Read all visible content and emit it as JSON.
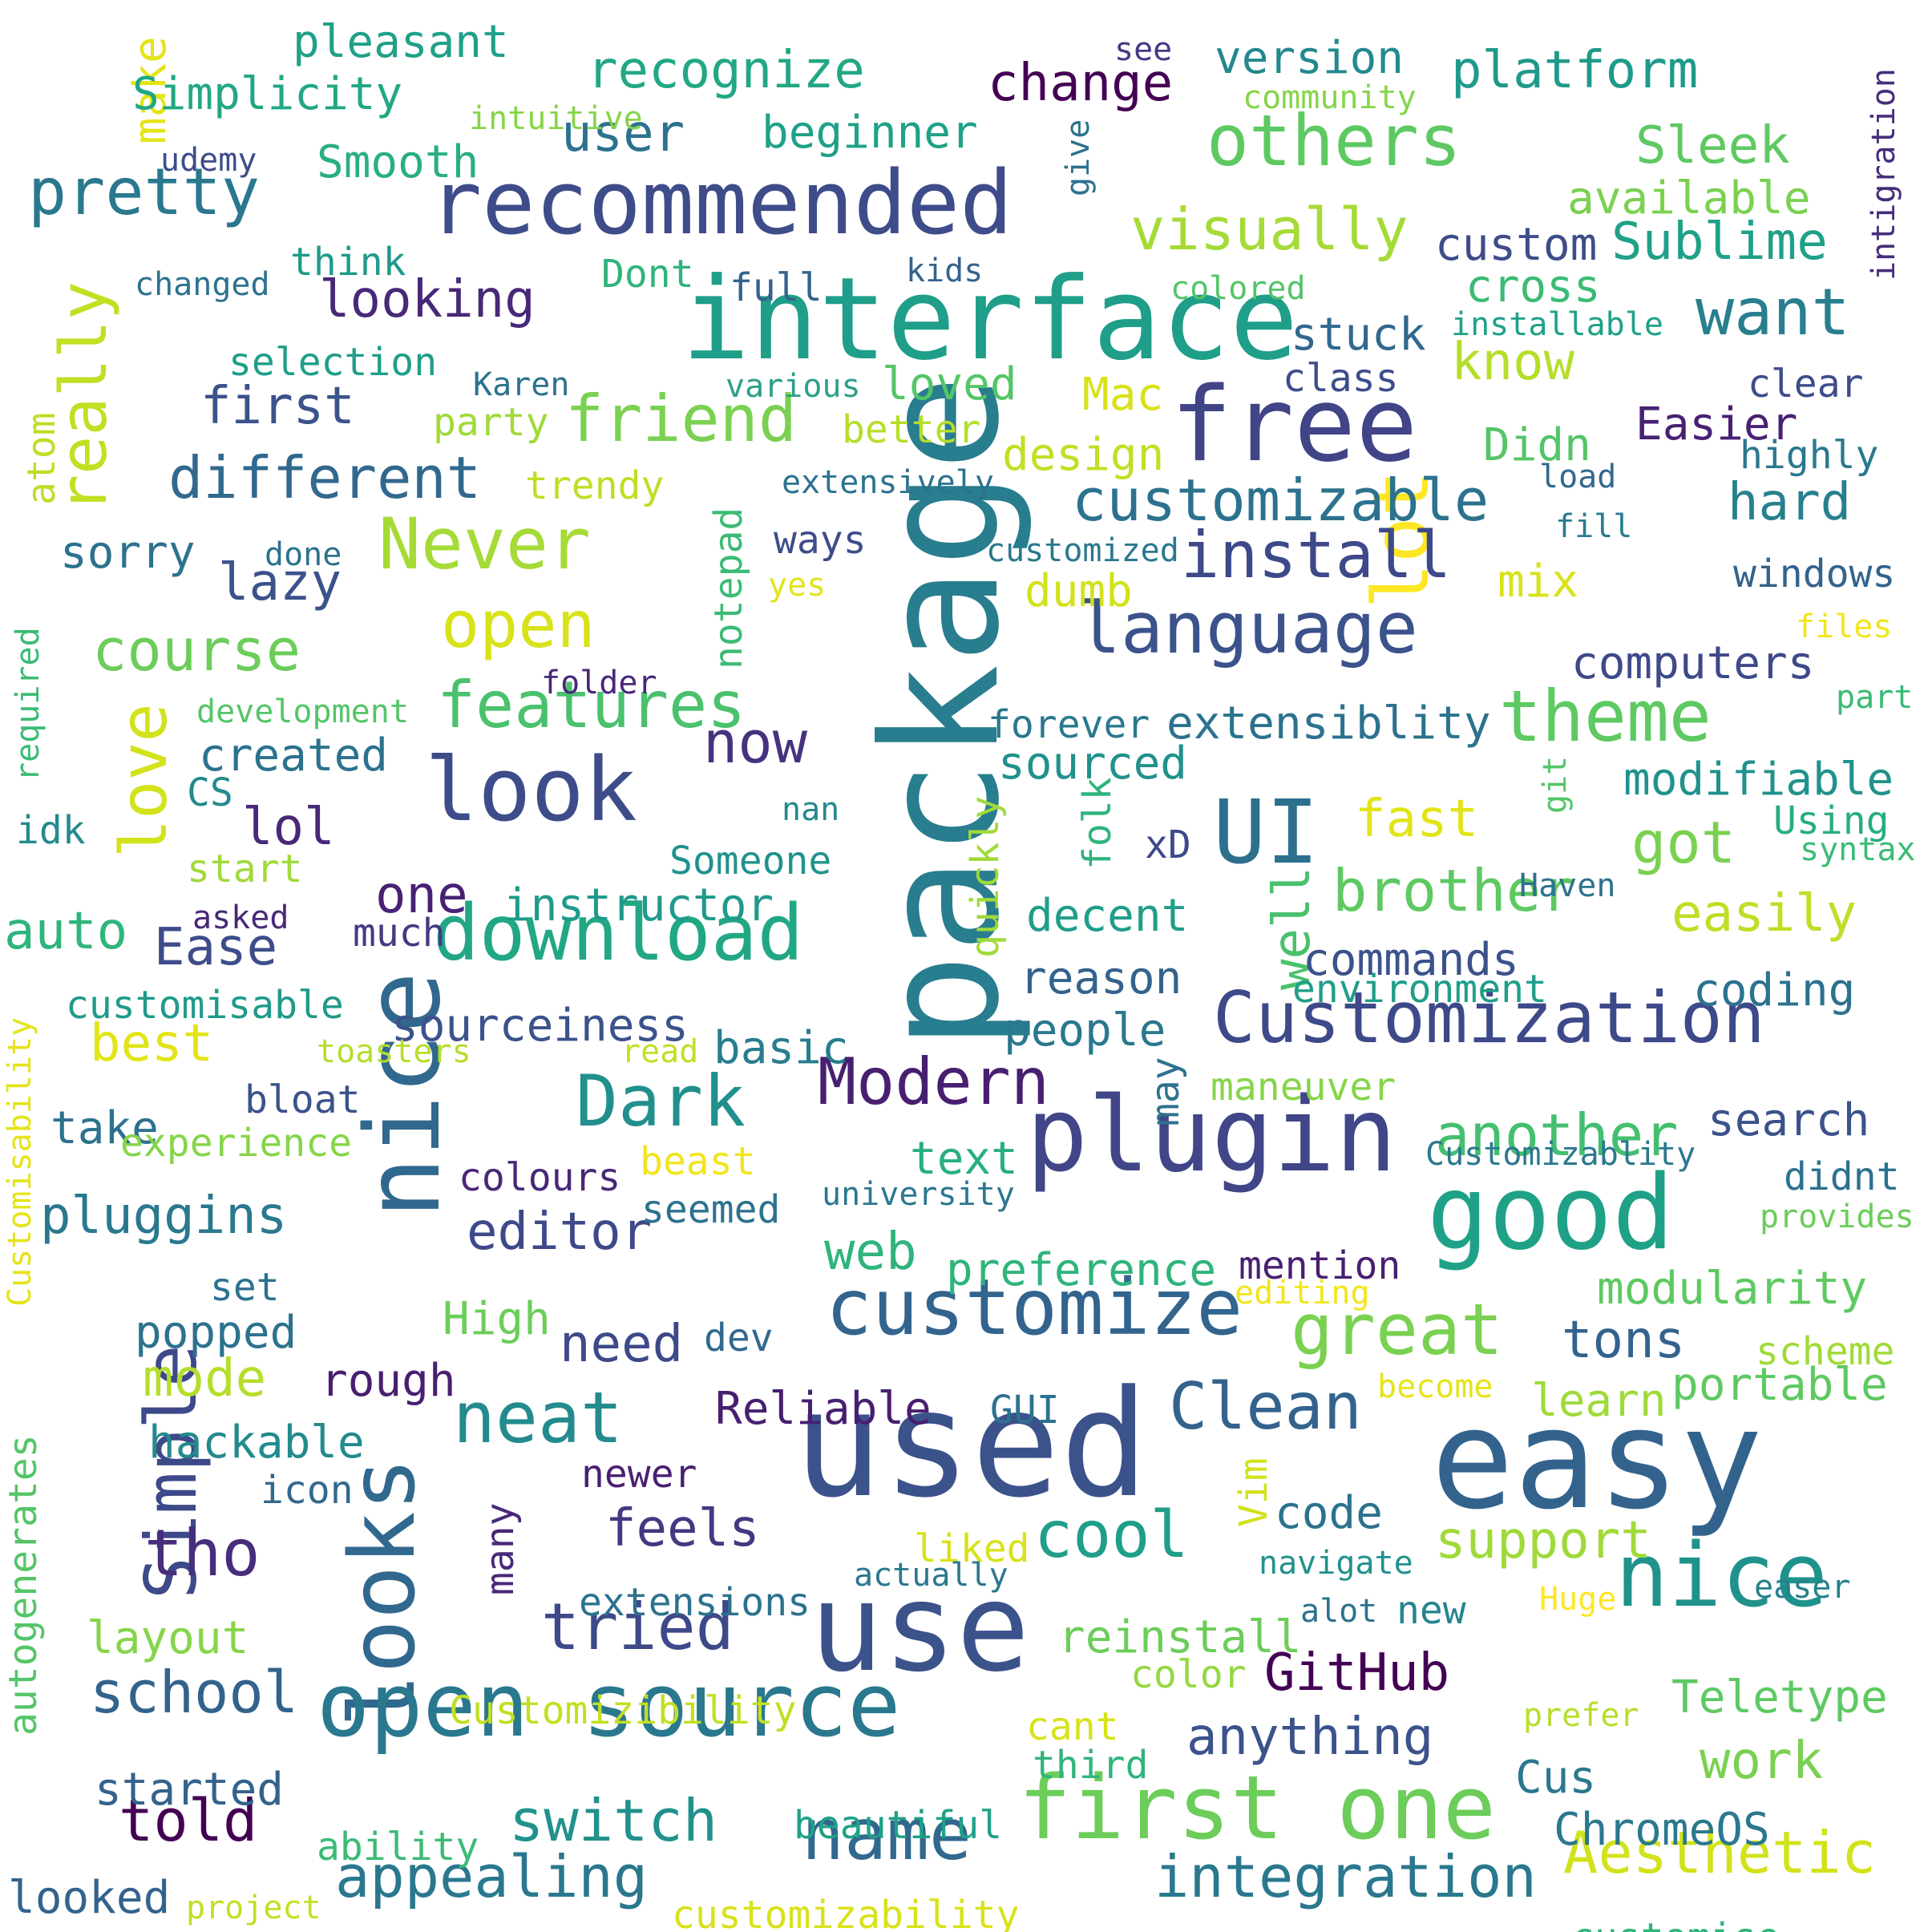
{
  "word_cloud": {
    "background": "#ffffff",
    "colormap": "viridis",
    "words": [
      {
        "text": "package",
        "color": "#287d8e"
      },
      {
        "text": "used",
        "color": "#3b528b"
      },
      {
        "text": "easy",
        "color": "#33638d"
      },
      {
        "text": "interface",
        "color": "#1f9e89"
      },
      {
        "text": "use",
        "color": "#3b528b"
      },
      {
        "text": "looks",
        "color": "#31688e"
      },
      {
        "text": "nice",
        "color": "#31688e"
      },
      {
        "text": "plugin",
        "color": "#404688"
      },
      {
        "text": "good",
        "color": "#1fa188"
      },
      {
        "text": "free",
        "color": "#414487"
      },
      {
        "text": "recommended",
        "color": "#3e4c8a"
      },
      {
        "text": "open source",
        "color": "#2a788e"
      },
      {
        "text": "first one",
        "color": "#6ccd5a"
      },
      {
        "text": "nice",
        "color": "#20928c"
      },
      {
        "text": "UI",
        "color": "#2d708e"
      },
      {
        "text": "look",
        "color": "#3e4c8a"
      },
      {
        "text": "customize",
        "color": "#32648e"
      },
      {
        "text": "download",
        "color": "#22a785"
      },
      {
        "text": "lot",
        "color": "#fde725"
      },
      {
        "text": "Simple",
        "color": "#3e4989"
      },
      {
        "text": "others",
        "color": "#5ec962"
      },
      {
        "text": "Never",
        "color": "#a5db36"
      },
      {
        "text": "language",
        "color": "#3b528b"
      },
      {
        "text": "theme",
        "color": "#5ec962"
      },
      {
        "text": "Customization",
        "color": "#3e4989"
      },
      {
        "text": "great",
        "color": "#7ad151"
      },
      {
        "text": "name",
        "color": "#31688e"
      },
      {
        "text": "neat",
        "color": "#238a8d"
      },
      {
        "text": "Dark",
        "color": "#21908d"
      },
      {
        "text": "Modern",
        "color": "#481f70"
      },
      {
        "text": "tried",
        "color": "#3e4989"
      },
      {
        "text": "cool",
        "color": "#1f9e89"
      },
      {
        "text": "tho",
        "color": "#472d7b"
      },
      {
        "text": "Clean",
        "color": "#33638d"
      },
      {
        "text": "pretty",
        "color": "#2a788e"
      },
      {
        "text": "friend",
        "color": "#7ad151"
      },
      {
        "text": "want",
        "color": "#277f8e"
      },
      {
        "text": "install",
        "color": "#3e4989"
      },
      {
        "text": "love",
        "color": "#d2e21b"
      },
      {
        "text": "really",
        "color": "#c2df23"
      },
      {
        "text": "features",
        "color": "#4ac16d"
      },
      {
        "text": "open",
        "color": "#d8e219"
      },
      {
        "text": "course",
        "color": "#6ccd5a"
      },
      {
        "text": "different",
        "color": "#31688e"
      },
      {
        "text": "appealing",
        "color": "#2a788e"
      },
      {
        "text": "integration",
        "color": "#2a788e"
      },
      {
        "text": "Aesthetic",
        "color": "#d2e21b"
      },
      {
        "text": "customizable",
        "color": "#2c728e"
      },
      {
        "text": "brother",
        "color": "#5ec962"
      },
      {
        "text": "visually",
        "color": "#a5db36"
      },
      {
        "text": "switch",
        "color": "#21918c"
      },
      {
        "text": "school",
        "color": "#33638d"
      },
      {
        "text": "told",
        "color": "#440154"
      },
      {
        "text": "support",
        "color": "#9fda3a"
      },
      {
        "text": "anything",
        "color": "#3b528b"
      },
      {
        "text": "GitHub",
        "color": "#440154"
      },
      {
        "text": "work",
        "color": "#7ad151"
      },
      {
        "text": "now",
        "color": "#46327e"
      },
      {
        "text": "got",
        "color": "#7ad151"
      },
      {
        "text": "easily",
        "color": "#bddf26"
      },
      {
        "text": "pluggins",
        "color": "#2a788e"
      },
      {
        "text": "editor",
        "color": "#3e4989"
      },
      {
        "text": "feels",
        "color": "#453781"
      },
      {
        "text": "need",
        "color": "#3e4989"
      },
      {
        "text": "mode",
        "color": "#b5de2b"
      },
      {
        "text": "best",
        "color": "#e2e418"
      },
      {
        "text": "recognize",
        "color": "#22a785"
      },
      {
        "text": "platform",
        "color": "#1f9a8a"
      },
      {
        "text": "change",
        "color": "#440154"
      },
      {
        "text": "Sleek",
        "color": "#5ec962"
      },
      {
        "text": "Sublime",
        "color": "#1fa188"
      },
      {
        "text": "looking",
        "color": "#482878"
      },
      {
        "text": "first",
        "color": "#3b528b"
      },
      {
        "text": "know",
        "color": "#b5de2b"
      },
      {
        "text": "hard",
        "color": "#27808e"
      },
      {
        "text": "fast",
        "color": "#e2e418"
      },
      {
        "text": "web",
        "color": "#2fb47c"
      },
      {
        "text": "tons",
        "color": "#33638d"
      },
      {
        "text": "lol",
        "color": "#482878"
      },
      {
        "text": "one",
        "color": "#482173"
      },
      {
        "text": "well",
        "color": "#4ac16d"
      },
      {
        "text": "auto",
        "color": "#2fb47c"
      },
      {
        "text": "Ease",
        "color": "#3e4c8a"
      },
      {
        "text": "lazy",
        "color": "#3b528b"
      },
      {
        "text": "user",
        "color": "#2c728e"
      },
      {
        "text": "make",
        "color": "#e5e419"
      },
      {
        "text": "Teletype",
        "color": "#5ec962"
      },
      {
        "text": "ChromeOS",
        "color": "#2a788e"
      },
      {
        "text": "portable",
        "color": "#5ec962"
      },
      {
        "text": "learn",
        "color": "#9fda3a"
      },
      {
        "text": "another",
        "color": "#44bf70"
      },
      {
        "text": "code",
        "color": "#2c728e"
      },
      {
        "text": "Cus",
        "color": "#2a788e"
      },
      {
        "text": "modifiable",
        "color": "#20928c"
      },
      {
        "text": "extensiblity",
        "color": "#2c728e"
      },
      {
        "text": "Simplicity",
        "color": "#22a785"
      },
      {
        "text": "pleasant",
        "color": "#1fa188"
      },
      {
        "text": "beginner",
        "color": "#1fa188"
      },
      {
        "text": "version",
        "color": "#23898e"
      },
      {
        "text": "available",
        "color": "#7ad151"
      },
      {
        "text": "Smooth",
        "color": "#29af7f"
      },
      {
        "text": "think",
        "color": "#1f9a8a"
      },
      {
        "text": "custom",
        "color": "#3e4c8a"
      },
      {
        "text": "cross",
        "color": "#3bbb75"
      },
      {
        "text": "stuck",
        "color": "#31688e"
      },
      {
        "text": "selection",
        "color": "#1f9e89"
      },
      {
        "text": "loved",
        "color": "#54c568"
      },
      {
        "text": "class",
        "color": "#3e4c8a"
      },
      {
        "text": "clear",
        "color": "#3e4c8a"
      },
      {
        "text": "Easier",
        "color": "#482173"
      },
      {
        "text": "highly",
        "color": "#2a788e"
      },
      {
        "text": "design",
        "color": "#c2df23"
      },
      {
        "text": "Mac",
        "color": "#d8e219"
      },
      {
        "text": "Didn",
        "color": "#54c568"
      },
      {
        "text": "party",
        "color": "#a0da39"
      },
      {
        "text": "trendy",
        "color": "#bddf26"
      },
      {
        "text": "sorry",
        "color": "#2c728e"
      },
      {
        "text": "ways",
        "color": "#3e4c8a"
      },
      {
        "text": "dumb",
        "color": "#d2e21b"
      },
      {
        "text": "mix",
        "color": "#d8e219"
      },
      {
        "text": "windows",
        "color": "#33638d"
      },
      {
        "text": "computers",
        "color": "#3e4989"
      },
      {
        "text": "created",
        "color": "#2c728e"
      },
      {
        "text": "sourced",
        "color": "#21918c"
      },
      {
        "text": "forever",
        "color": "#2a788e"
      },
      {
        "text": "CS",
        "color": "#238a8d"
      },
      {
        "text": "Using",
        "color": "#27ad81"
      },
      {
        "text": "idk",
        "color": "#238a8d"
      },
      {
        "text": "Someone",
        "color": "#20928c"
      },
      {
        "text": "xD",
        "color": "#3e4989"
      },
      {
        "text": "instructor",
        "color": "#1f9a8a"
      },
      {
        "text": "decent",
        "color": "#1f9e89"
      },
      {
        "text": "commands",
        "color": "#3b528b"
      },
      {
        "text": "much",
        "color": "#443983"
      },
      {
        "text": "reason",
        "color": "#33638d"
      },
      {
        "text": "environment",
        "color": "#1f9e89"
      },
      {
        "text": "coding",
        "color": "#2c728e"
      },
      {
        "text": "customisable",
        "color": "#1f9a8a"
      },
      {
        "text": "sourceiness",
        "color": "#3b528b"
      },
      {
        "text": "basic",
        "color": "#287d8e"
      },
      {
        "text": "people",
        "color": "#2a788e"
      },
      {
        "text": "search",
        "color": "#3b528b"
      },
      {
        "text": "take",
        "color": "#2c728e"
      },
      {
        "text": "bloat",
        "color": "#3b528b"
      },
      {
        "text": "text",
        "color": "#29af7f"
      },
      {
        "text": "didnt",
        "color": "#2c728e"
      },
      {
        "text": "colours",
        "color": "#482878"
      },
      {
        "text": "seemed",
        "color": "#2c728e"
      },
      {
        "text": "set",
        "color": "#2c728e"
      },
      {
        "text": "preference",
        "color": "#2fb47c"
      },
      {
        "text": "mention",
        "color": "#481f70"
      },
      {
        "text": "modularity",
        "color": "#5ec962"
      },
      {
        "text": "popped",
        "color": "#2c728e"
      },
      {
        "text": "High",
        "color": "#6ccd5a"
      },
      {
        "text": "rough",
        "color": "#481f70"
      },
      {
        "text": "hackable",
        "color": "#238a8d"
      },
      {
        "text": "Reliable",
        "color": "#481f70"
      },
      {
        "text": "GUI",
        "color": "#2c728e"
      },
      {
        "text": "scheme",
        "color": "#a0da39"
      },
      {
        "text": "icon",
        "color": "#31688e"
      },
      {
        "text": "newer",
        "color": "#481f70"
      },
      {
        "text": "extensions",
        "color": "#2c728e"
      },
      {
        "text": "layout",
        "color": "#86d549"
      },
      {
        "text": "started",
        "color": "#33638d"
      },
      {
        "text": "reinstall",
        "color": "#6ccd5a"
      },
      {
        "text": "new",
        "color": "#25848e"
      },
      {
        "text": "cant",
        "color": "#d8e219"
      },
      {
        "text": "third",
        "color": "#2fb47c"
      },
      {
        "text": "color",
        "color": "#95d840"
      },
      {
        "text": "Customizibility",
        "color": "#c2df23"
      },
      {
        "text": "ability",
        "color": "#3bbb75"
      },
      {
        "text": "beautiful",
        "color": "#1fa188"
      },
      {
        "text": "looked",
        "color": "#33638d"
      },
      {
        "text": "customizability",
        "color": "#d8e219"
      },
      {
        "text": "customise",
        "color": "#2fb47c"
      },
      {
        "text": "liked",
        "color": "#d8e219"
      },
      {
        "text": "navigate",
        "color": "#21918c"
      },
      {
        "text": "actually",
        "color": "#2a788e"
      },
      {
        "text": "alot",
        "color": "#2c728e"
      },
      {
        "text": "easer",
        "color": "#27808e"
      },
      {
        "text": "prefer",
        "color": "#b5de2b"
      },
      {
        "text": "Huge",
        "color": "#fde725"
      },
      {
        "text": "become",
        "color": "#e5e419"
      },
      {
        "text": "editing",
        "color": "#f1e51d"
      },
      {
        "text": "Customizablity",
        "color": "#2a788e"
      },
      {
        "text": "provides",
        "color": "#6ccd5a"
      },
      {
        "text": "university",
        "color": "#2a788e"
      },
      {
        "text": "beast",
        "color": "#f1e51d"
      },
      {
        "text": "experience",
        "color": "#86d549"
      },
      {
        "text": "toasters",
        "color": "#b5de2b"
      },
      {
        "text": "read",
        "color": "#c2df23"
      },
      {
        "text": "maneuver",
        "color": "#86d549"
      },
      {
        "text": "asked",
        "color": "#482878"
      },
      {
        "text": "start",
        "color": "#a0da39"
      },
      {
        "text": "nan",
        "color": "#23898e"
      },
      {
        "text": "syntax",
        "color": "#3bbb75"
      },
      {
        "text": "Haven",
        "color": "#2c728e"
      },
      {
        "text": "part",
        "color": "#3bbb75"
      },
      {
        "text": "files",
        "color": "#f1e51d"
      },
      {
        "text": "folder",
        "color": "#482878"
      },
      {
        "text": "development",
        "color": "#54c568"
      },
      {
        "text": "done",
        "color": "#2c728e"
      },
      {
        "text": "yes",
        "color": "#e2e418"
      },
      {
        "text": "customized",
        "color": "#2a788e"
      },
      {
        "text": "fill",
        "color": "#287d8e"
      },
      {
        "text": "load",
        "color": "#31688e"
      },
      {
        "text": "extensively",
        "color": "#2c728e"
      },
      {
        "text": "various",
        "color": "#2c9f8a"
      },
      {
        "text": "Karen",
        "color": "#2c728e"
      },
      {
        "text": "installable",
        "color": "#1fa188"
      },
      {
        "text": "colored",
        "color": "#54c568"
      },
      {
        "text": "better",
        "color": "#b5de2b"
      },
      {
        "text": "kids",
        "color": "#33638d"
      },
      {
        "text": "Dont",
        "color": "#2fb47c"
      },
      {
        "text": "full",
        "color": "#33638d"
      },
      {
        "text": "changed",
        "color": "#2c728e"
      },
      {
        "text": "udemy",
        "color": "#3e4c8a"
      },
      {
        "text": "intuitive",
        "color": "#86d549"
      },
      {
        "text": "community",
        "color": "#86d549"
      },
      {
        "text": "see",
        "color": "#443983"
      },
      {
        "text": "give",
        "color": "#2c728e"
      },
      {
        "text": "notepad",
        "color": "#3bbb75"
      },
      {
        "text": "quickly",
        "color": "#a0da39"
      },
      {
        "text": "folk",
        "color": "#2fb47c"
      },
      {
        "text": "may",
        "color": "#2c728e"
      },
      {
        "text": "dev",
        "color": "#31688e"
      },
      {
        "text": "Vim",
        "color": "#d2e21b"
      },
      {
        "text": "many",
        "color": "#482878"
      },
      {
        "text": "git",
        "color": "#54c568"
      },
      {
        "text": "atom",
        "color": "#bddf26"
      },
      {
        "text": "required",
        "color": "#3bbb75"
      },
      {
        "text": "Customisability",
        "color": "#e5e419"
      },
      {
        "text": "autogenerates",
        "color": "#54c568"
      },
      {
        "text": "intigration",
        "color": "#472d7b"
      },
      {
        "text": "project",
        "color": "#c2df23"
      }
    ]
  }
}
